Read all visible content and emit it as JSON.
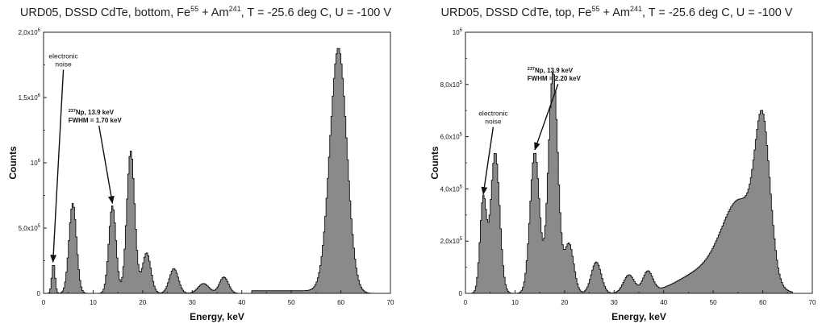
{
  "chart_data": [
    {
      "type": "area",
      "title": "URD05, DSSD CdTe, bottom, Fe55 + Am241, T = -25.6 deg C, U = -100 V",
      "title_parts": {
        "pre": "URD05, DSSD CdTe, bottom, Fe",
        "sup1": "55",
        "mid": " + Am",
        "sup2": "241",
        "post": ", T = -25.6 deg C, U = -100 V"
      },
      "xlabel": "Energy, keV",
      "ylabel": "Counts",
      "xlim": [
        0,
        70
      ],
      "ylim": [
        0,
        2000000
      ],
      "x_ticks": [
        0,
        10,
        20,
        30,
        40,
        50,
        60,
        70
      ],
      "x_tick_labels": [
        "0",
        "10",
        "20",
        "30",
        "40",
        "50",
        "60",
        "70"
      ],
      "y_ticks": [
        0,
        500000,
        1000000,
        1500000,
        2000000
      ],
      "y_tick_labels": [
        {
          "base": "0",
          "exp": ""
        },
        {
          "base": "5,0x10",
          "exp": "5"
        },
        {
          "base": "10",
          "exp": "6"
        },
        {
          "base": "1,5x10",
          "exp": "6"
        },
        {
          "base": "2,0x10",
          "exp": "6"
        }
      ],
      "grid": false,
      "fill_color": "#8a8a8a",
      "peaks": [
        {
          "center": 2.0,
          "height": 230000,
          "sigma": 0.32
        },
        {
          "center": 5.9,
          "height": 690000,
          "sigma": 0.75
        },
        {
          "center": 13.9,
          "height": 670000,
          "sigma": 0.72
        },
        {
          "center": 17.6,
          "height": 1090000,
          "sigma": 0.8
        },
        {
          "center": 20.8,
          "height": 310000,
          "sigma": 0.85
        },
        {
          "center": 26.3,
          "height": 190000,
          "sigma": 0.9
        },
        {
          "center": 32.3,
          "height": 75000,
          "sigma": 1.1
        },
        {
          "center": 36.4,
          "height": 125000,
          "sigma": 0.9
        },
        {
          "center": 59.5,
          "height": 1880000,
          "sigma": 1.7
        }
      ],
      "baseline": {
        "start": 42,
        "end": 58,
        "level": 20000
      },
      "annotations": [
        {
          "id": "noise",
          "lines": [
            "electronic",
            "noise"
          ],
          "x": 4.0,
          "y": 1800000,
          "arrow_to": [
            1.9,
            240000
          ]
        },
        {
          "id": "np",
          "lines": [
            "237Np, 13.9 keV",
            "FWHM = 1.70 keV"
          ],
          "x": 5,
          "y": 1370000,
          "arrow_to": [
            13.9,
            690000
          ]
        }
      ]
    },
    {
      "type": "area",
      "title": "URD05, DSSD CdTe, top, Fe55 + Am241, T = -25.6 deg C, U = -100 V",
      "title_parts": {
        "pre": "URD05, DSSD CdTe, top, Fe",
        "sup1": "55",
        "mid": " + Am",
        "sup2": "241",
        "post": ", T = -25.6 deg C, U = -100 V"
      },
      "xlabel": "Energy, keV",
      "ylabel": "Counts",
      "xlim": [
        0,
        70
      ],
      "ylim": [
        0,
        1000000
      ],
      "x_ticks": [
        0,
        10,
        20,
        30,
        40,
        50,
        60,
        70
      ],
      "x_tick_labels": [
        "0",
        "10",
        "20",
        "30",
        "40",
        "50",
        "60",
        "70"
      ],
      "y_ticks": [
        0,
        200000,
        400000,
        600000,
        800000,
        1000000
      ],
      "y_tick_labels": [
        {
          "base": "0",
          "exp": ""
        },
        {
          "base": "2,0x10",
          "exp": "5"
        },
        {
          "base": "4,0x10",
          "exp": "5"
        },
        {
          "base": "6,0x10",
          "exp": "5"
        },
        {
          "base": "8,0x10",
          "exp": "5"
        },
        {
          "base": "10",
          "exp": "6"
        }
      ],
      "grid": false,
      "fill_color": "#8a8a8a",
      "peaks": [
        {
          "center": 3.6,
          "height": 360000,
          "sigma": 0.65
        },
        {
          "center": 6.0,
          "height": 540000,
          "sigma": 0.9
        },
        {
          "center": 14.0,
          "height": 540000,
          "sigma": 0.95
        },
        {
          "center": 17.7,
          "height": 850000,
          "sigma": 0.95
        },
        {
          "center": 20.9,
          "height": 190000,
          "sigma": 0.95
        },
        {
          "center": 26.4,
          "height": 120000,
          "sigma": 1.0
        },
        {
          "center": 33.0,
          "height": 70000,
          "sigma": 1.1
        },
        {
          "center": 36.8,
          "height": 80000,
          "sigma": 1.0
        },
        {
          "center": 60.0,
          "height": 540000,
          "sigma": 1.5
        },
        {
          "center": 55.5,
          "height": 330000,
          "sigma": 3.6
        },
        {
          "center": 48.0,
          "height": 80000,
          "sigma": 5.0
        }
      ],
      "annotations": [
        {
          "id": "noise",
          "lines": [
            "electronic",
            "noise"
          ],
          "x": 5.6,
          "y": 680000,
          "arrow_to": [
            3.6,
            380000
          ]
        },
        {
          "id": "np",
          "lines": [
            "237Np, 13.9 keV",
            "FWHM = 2.20 keV"
          ],
          "x": 12.5,
          "y": 845000,
          "arrow_to": [
            14.0,
            550000
          ]
        }
      ]
    }
  ]
}
